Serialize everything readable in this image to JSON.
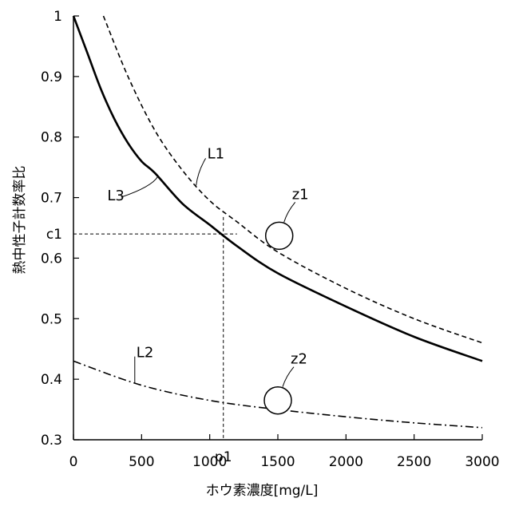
{
  "chart_data": {
    "type": "line",
    "xlabel": "ホウ素濃度[mg/L]",
    "ylabel": "熱中性子計数率比",
    "xlim": [
      0,
      3000
    ],
    "ylim": [
      0.3,
      1.0
    ],
    "xticks": [
      0,
      500,
      1000,
      1500,
      2000,
      2500,
      3000
    ],
    "xtick_labels": [
      "0",
      "500",
      "1000",
      "1500",
      "2000",
      "2500",
      "3000"
    ],
    "yticks": [
      0.3,
      0.4,
      0.5,
      0.6,
      0.7,
      0.8,
      0.9,
      1.0
    ],
    "ytick_labels": [
      "0.3",
      "0.4",
      "0.5",
      "0.6",
      "0.7",
      "0.8",
      "0.9",
      "1"
    ],
    "grid": false,
    "series": [
      {
        "name": "L1",
        "style": "dashed",
        "x": [
          220,
          400,
          600,
          800,
          1000,
          1200,
          1500,
          2000,
          2500,
          3000
        ],
        "values": [
          1.0,
          0.9,
          0.81,
          0.745,
          0.695,
          0.66,
          0.61,
          0.55,
          0.5,
          0.46
        ]
      },
      {
        "name": "L3",
        "style": "solid",
        "x": [
          0,
          100,
          200,
          300,
          400,
          500,
          600,
          800,
          1000,
          1200,
          1500,
          2000,
          2500,
          3000
        ],
        "values": [
          1.0,
          0.94,
          0.88,
          0.83,
          0.79,
          0.76,
          0.74,
          0.69,
          0.655,
          0.62,
          0.575,
          0.52,
          0.47,
          0.43
        ]
      },
      {
        "name": "L2",
        "style": "dashdot",
        "x": [
          0,
          500,
          1000,
          1500,
          2000,
          2500,
          3000
        ],
        "values": [
          0.43,
          0.39,
          0.365,
          0.35,
          0.338,
          0.328,
          0.32
        ]
      }
    ],
    "annotations": [
      {
        "label": "L1",
        "series": "L1",
        "at_x": 900
      },
      {
        "label": "L3",
        "series": "L3",
        "at_x": 620
      },
      {
        "label": "L2",
        "series": "L2",
        "at_x": 450
      },
      {
        "label": "z1",
        "circle_x": 1510,
        "circle_y": 0.637
      },
      {
        "label": "z2",
        "circle_x": 1500,
        "circle_y": 0.365
      },
      {
        "label": "c1",
        "value": 0.64
      },
      {
        "label": "p1",
        "value": 1100
      }
    ]
  }
}
